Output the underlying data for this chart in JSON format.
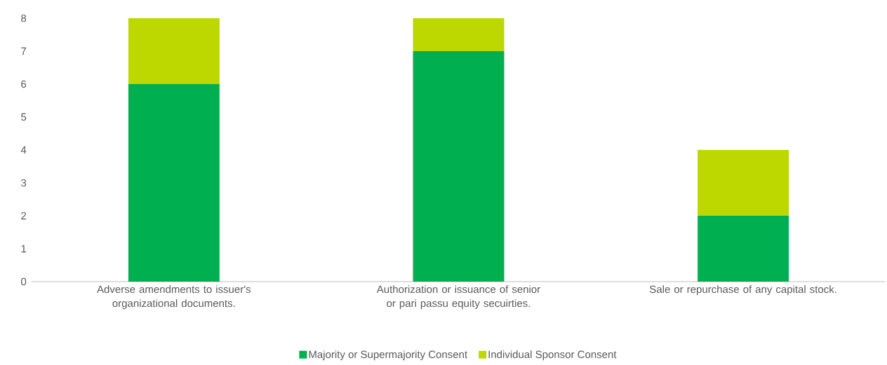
{
  "chart_data": {
    "type": "bar",
    "stacked": true,
    "categories": [
      "Adverse amendments to issuer's organizational documents.",
      "Authorization or issuance of senior or pari passu equity secuirties.",
      "Sale or repurchase of any capital stock."
    ],
    "series": [
      {
        "name": "Majority or Supermajority Consent",
        "color": "#00b050",
        "values": [
          6,
          7,
          2
        ]
      },
      {
        "name": "Individual Sponsor Consent",
        "color": "#bdd700",
        "values": [
          2,
          1,
          2
        ]
      }
    ],
    "ylim": [
      0,
      8
    ],
    "yticks": [
      0,
      1,
      2,
      3,
      4,
      5,
      6,
      7,
      8
    ],
    "legend": "bottom",
    "grid": false
  }
}
